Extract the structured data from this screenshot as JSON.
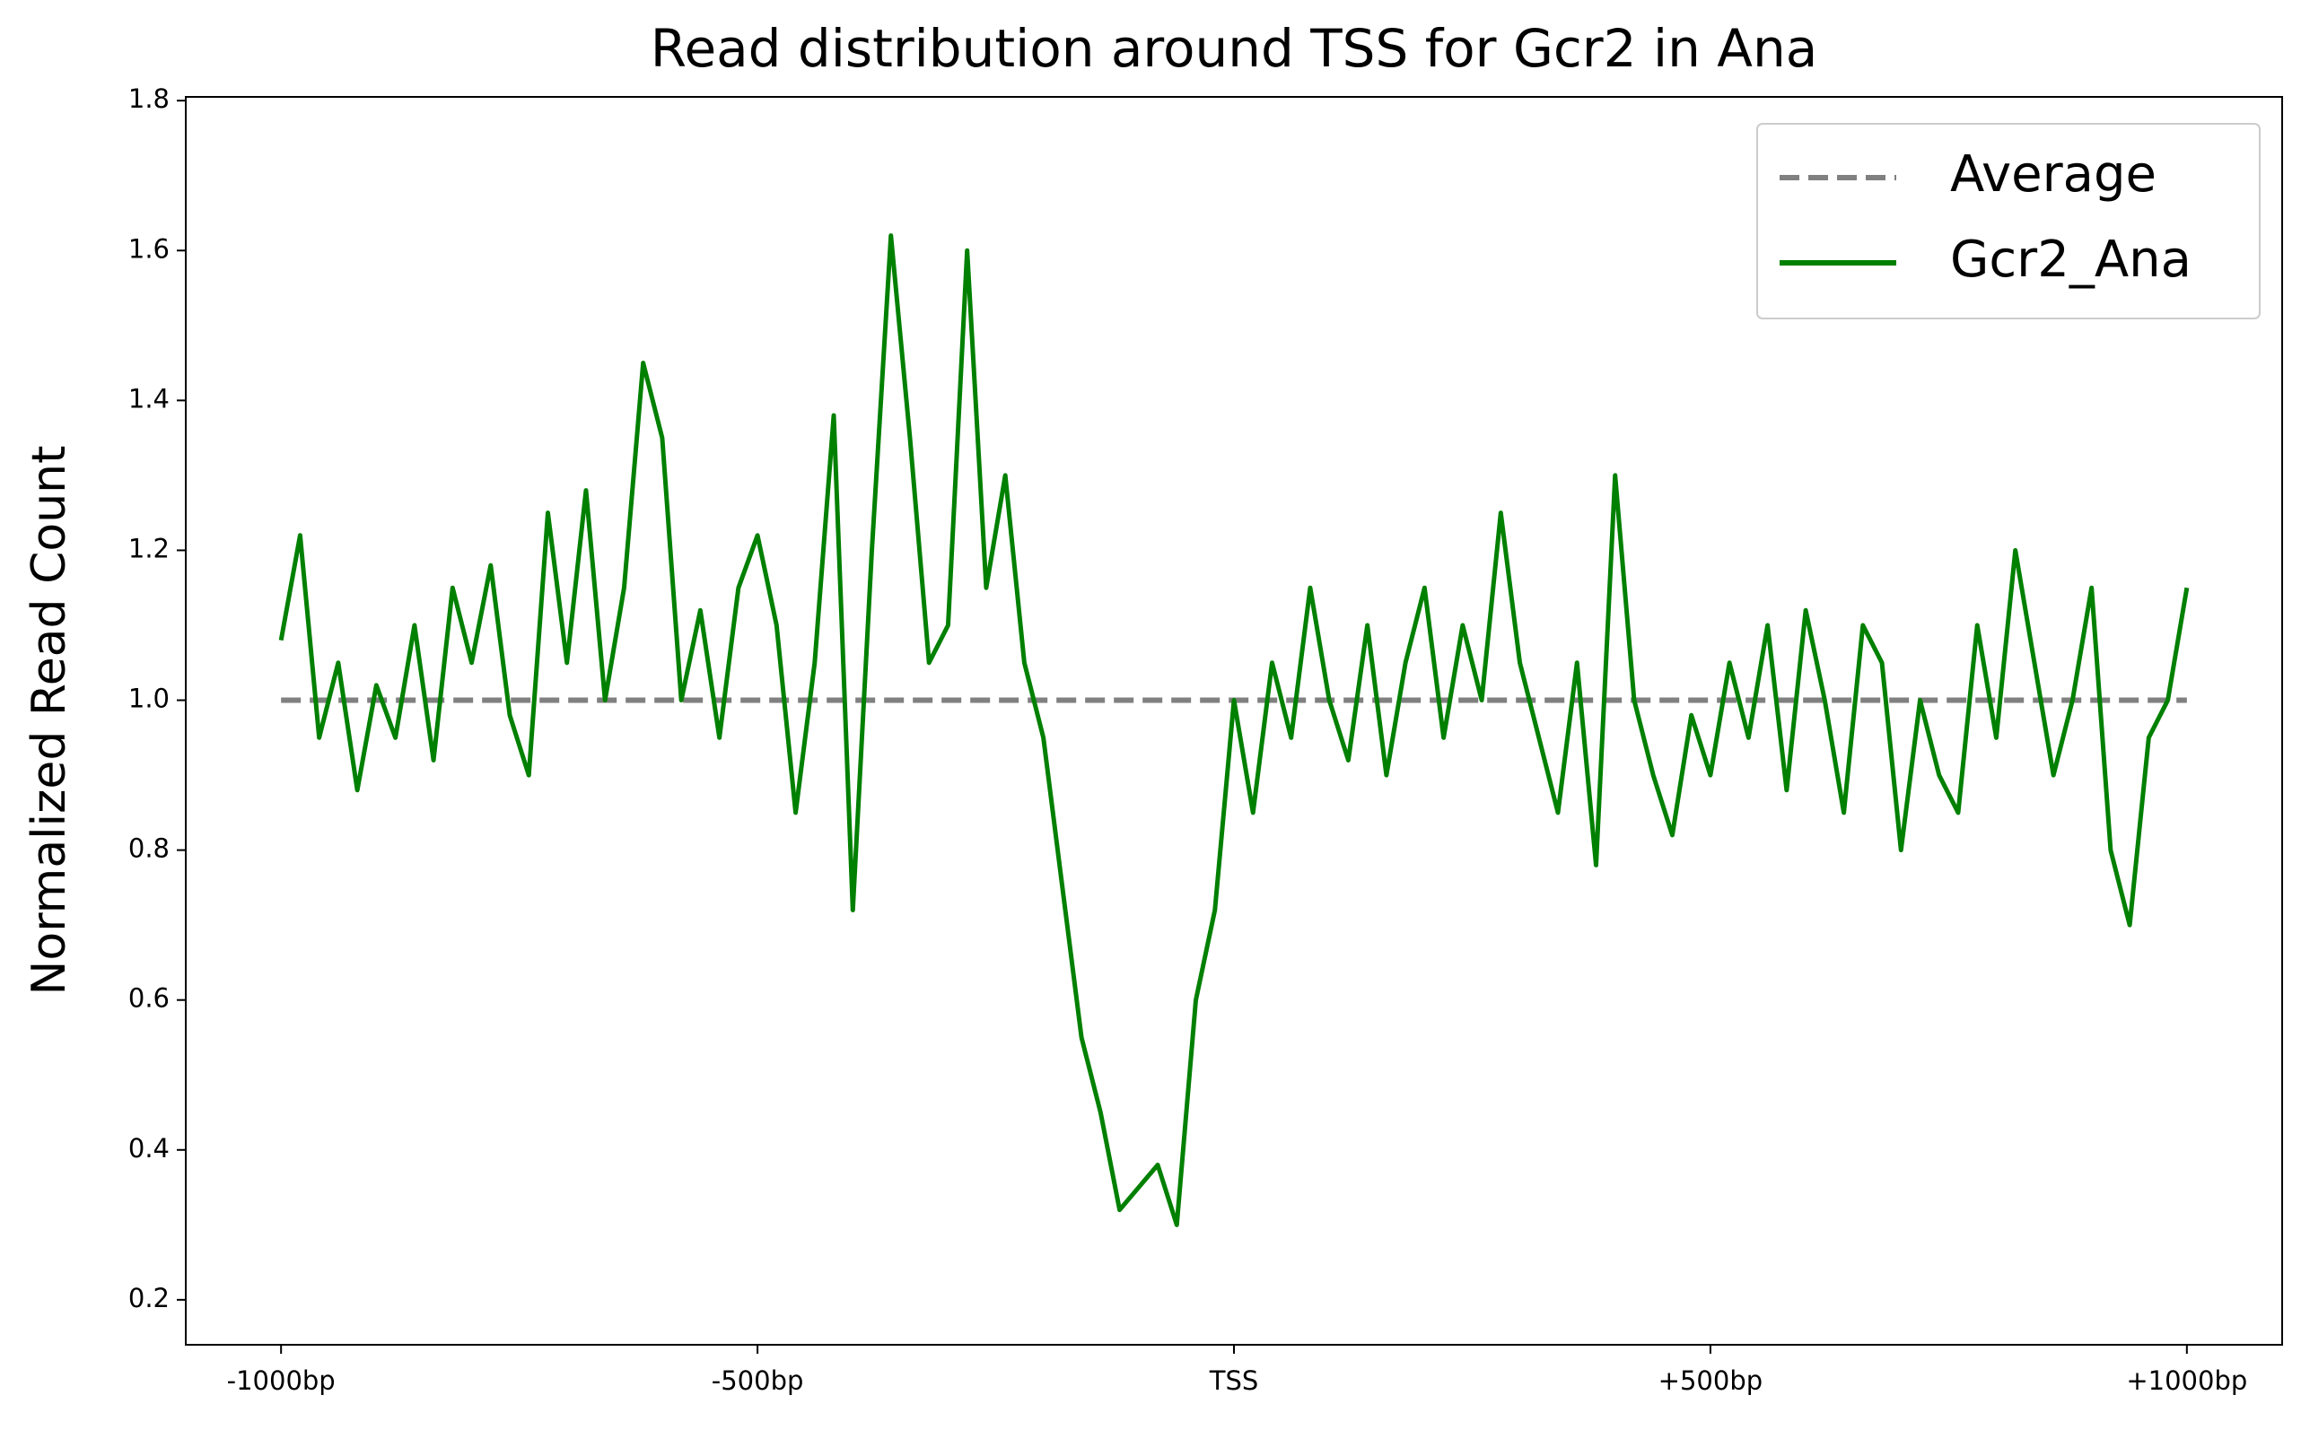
{
  "chart_data": {
    "type": "line",
    "title": "Read distribution around TSS for Gcr2 in Ana",
    "ylabel": "Normalized Read Count",
    "xlim": [
      -1100,
      1100
    ],
    "xticks": [
      {
        "value": -1000,
        "label": "-1000bp"
      },
      {
        "value": -500,
        "label": "-500bp"
      },
      {
        "value": 0,
        "label": "TSS"
      },
      {
        "value": 500,
        "label": "+500bp"
      },
      {
        "value": 1000,
        "label": "+1000bp"
      }
    ],
    "ylim": [
      0.14,
      1.805
    ],
    "yticks": [
      {
        "value": 0.2,
        "label": "0.2"
      },
      {
        "value": 0.4,
        "label": "0.4"
      },
      {
        "value": 0.6,
        "label": "0.6"
      },
      {
        "value": 0.8,
        "label": "0.8"
      },
      {
        "value": 1.0,
        "label": "1.0"
      },
      {
        "value": 1.2,
        "label": "1.2"
      },
      {
        "value": 1.4,
        "label": "1.4"
      },
      {
        "value": 1.6,
        "label": "1.6"
      },
      {
        "value": 1.8,
        "label": "1.8"
      }
    ],
    "legend": "upper right",
    "series": [
      {
        "name": "Average",
        "color": "#808080",
        "dashed": true,
        "x": [
          -1000,
          1000
        ],
        "values": [
          1,
          1
        ]
      },
      {
        "name": "Gcr2_Ana",
        "color": "#008000",
        "dashed": false,
        "x": [
          -1000,
          -980,
          -960,
          -940,
          -920,
          -900,
          -880,
          -860,
          -840,
          -820,
          -800,
          -780,
          -760,
          -740,
          -720,
          -700,
          -680,
          -660,
          -640,
          -620,
          -600,
          -580,
          -560,
          -540,
          -520,
          -500,
          -480,
          -460,
          -440,
          -420,
          -400,
          -380,
          -360,
          -340,
          -320,
          -300,
          -280,
          -260,
          -240,
          -220,
          -200,
          -180,
          -160,
          -140,
          -120,
          -100,
          -80,
          -60,
          -40,
          -20,
          0,
          20,
          40,
          60,
          80,
          100,
          120,
          140,
          160,
          180,
          200,
          220,
          240,
          260,
          280,
          300,
          320,
          340,
          360,
          380,
          400,
          420,
          440,
          460,
          480,
          500,
          520,
          540,
          560,
          580,
          600,
          620,
          640,
          660,
          680,
          700,
          720,
          740,
          760,
          780,
          800,
          820,
          840,
          860,
          880,
          900,
          920,
          940,
          960,
          980,
          1000
        ],
        "values": [
          1.08,
          1.22,
          0.95,
          1.05,
          0.88,
          1.02,
          0.95,
          1.1,
          0.92,
          1.15,
          1.05,
          1.18,
          0.98,
          0.9,
          1.25,
          1.05,
          1.28,
          1.0,
          1.15,
          1.45,
          1.35,
          1.0,
          1.12,
          0.95,
          1.15,
          1.22,
          1.1,
          0.85,
          1.05,
          1.38,
          0.72,
          1.2,
          1.62,
          1.35,
          1.05,
          1.1,
          1.6,
          1.15,
          1.3,
          1.05,
          0.95,
          0.75,
          0.55,
          0.45,
          0.32,
          0.35,
          0.38,
          0.3,
          0.6,
          0.72,
          1.0,
          0.85,
          1.05,
          0.95,
          1.15,
          1.0,
          0.92,
          1.1,
          0.9,
          1.05,
          1.15,
          0.95,
          1.1,
          1.0,
          1.25,
          1.05,
          0.95,
          0.85,
          1.05,
          0.78,
          1.3,
          1.0,
          0.9,
          0.82,
          0.98,
          0.9,
          1.05,
          0.95,
          1.1,
          0.88,
          1.12,
          1.0,
          0.85,
          1.1,
          1.05,
          0.8,
          1.0,
          0.9,
          0.85,
          1.1,
          0.95,
          1.2,
          1.05,
          0.9,
          1.0,
          1.15,
          0.8,
          0.7,
          0.95,
          1.0,
          1.15
        ]
      }
    ]
  }
}
